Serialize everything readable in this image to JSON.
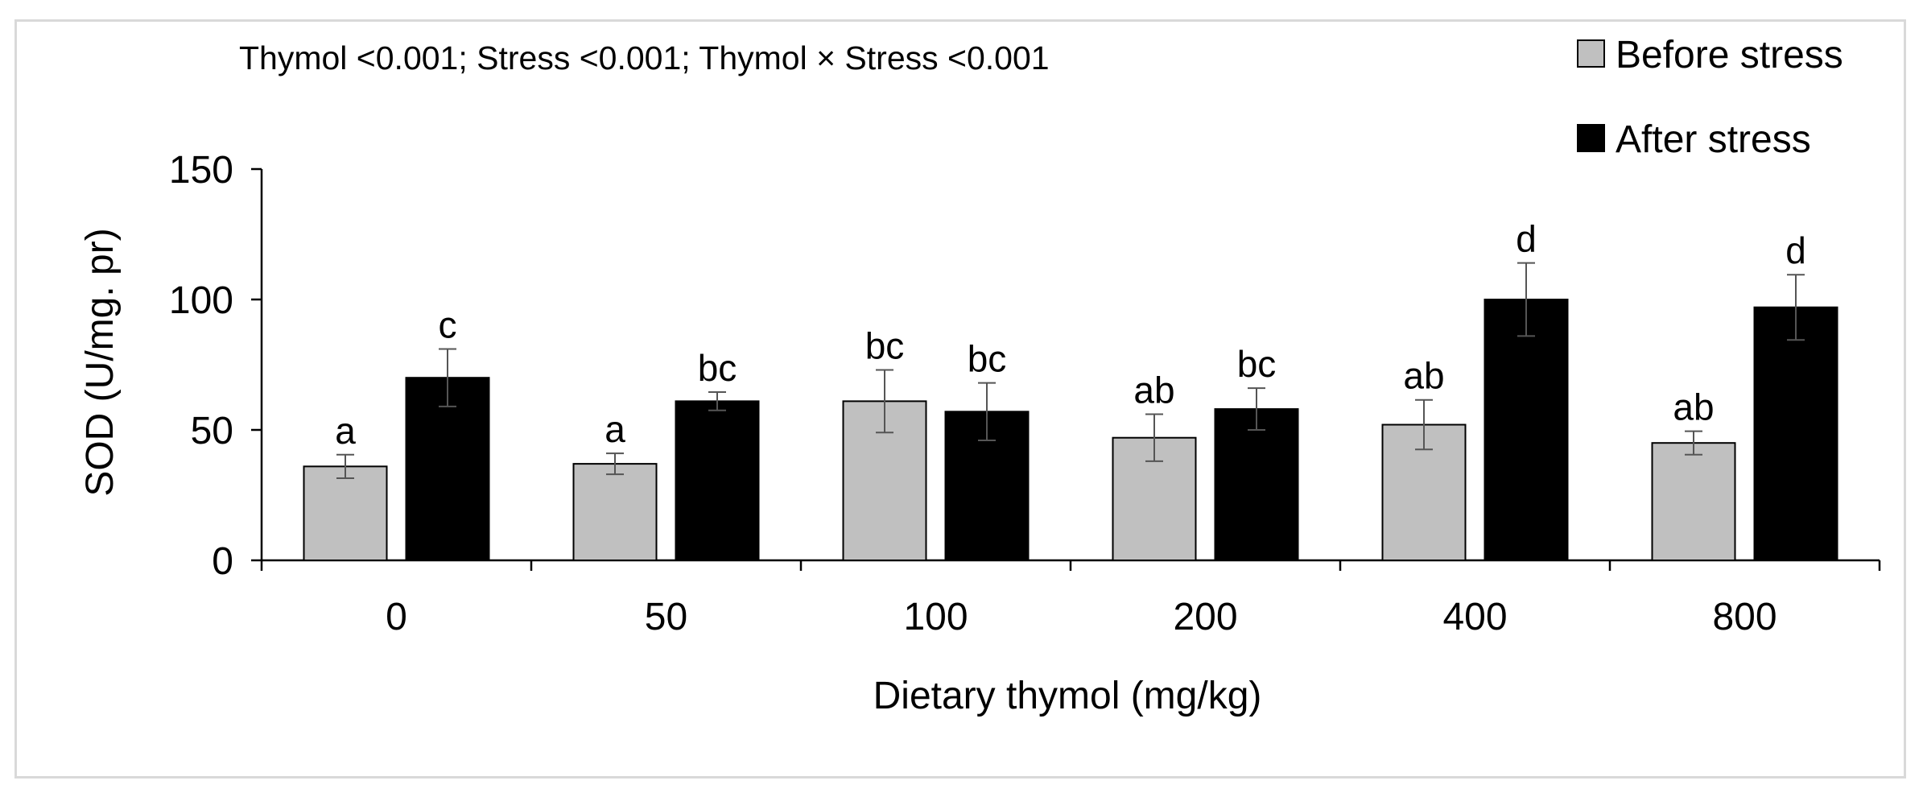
{
  "chart_data": {
    "type": "bar",
    "title": "Thymol <0.001; Stress <0.001; Thymol × Stress <0.001",
    "xlabel": "Dietary thymol (mg/kg)",
    "ylabel": "SOD (U/mg. pr)",
    "ylim": [
      0,
      150
    ],
    "yticks": [
      0,
      50,
      100,
      150
    ],
    "categories": [
      "0",
      "50",
      "100",
      "200",
      "400",
      "800"
    ],
    "legend_position": "top-right",
    "series": [
      {
        "name": "Before stress",
        "color": "#c0c0c0",
        "values": [
          36,
          37,
          61,
          47,
          52,
          45
        ],
        "errors": [
          4.5,
          4,
          12,
          9,
          9.5,
          4.5
        ],
        "letters": [
          "a",
          "a",
          "bc",
          "ab",
          "ab",
          "ab"
        ]
      },
      {
        "name": "After stress",
        "color": "#000000",
        "values": [
          70,
          61,
          57,
          58,
          100,
          97
        ],
        "errors": [
          11,
          3.5,
          11,
          8,
          14,
          12.5
        ],
        "letters": [
          "c",
          "bc",
          "bc",
          "bc",
          "d",
          "d"
        ]
      }
    ]
  }
}
